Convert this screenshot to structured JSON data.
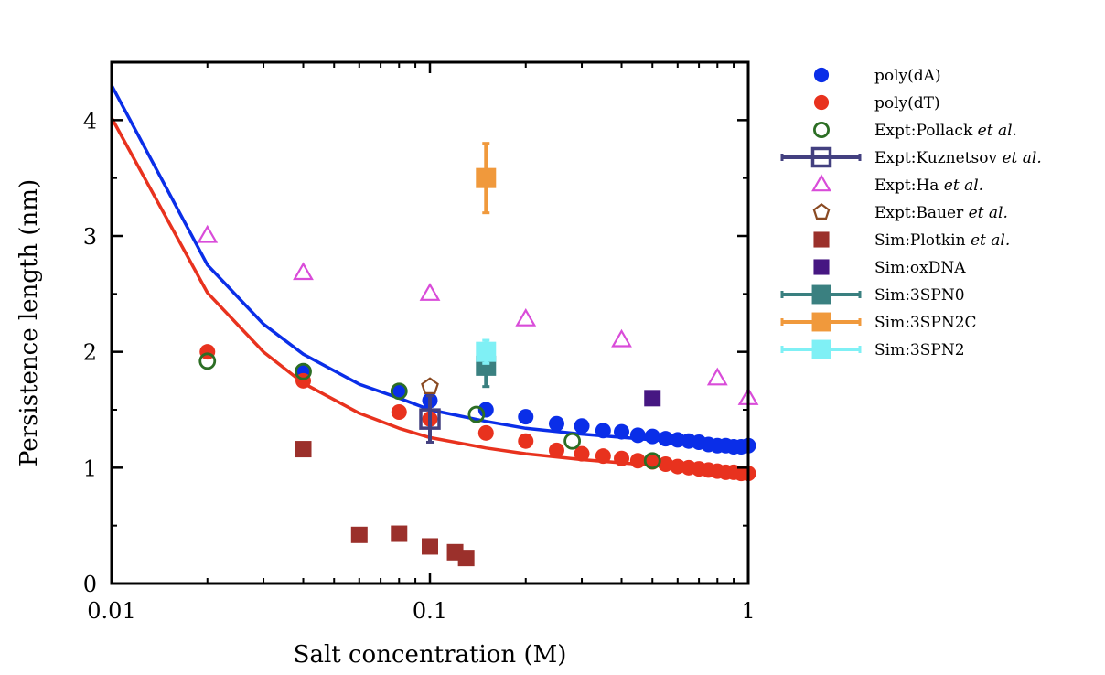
{
  "chart_data": {
    "type": "scatter",
    "xscale": "log",
    "xlabel": "Salt concentration (M)",
    "ylabel": "Persistence length (nm)",
    "xlim": [
      0.01,
      1
    ],
    "ylim": [
      0,
      4.5
    ],
    "xticks": [
      {
        "value": 0.01,
        "label": "0.01"
      },
      {
        "value": 0.1,
        "label": "0.1"
      },
      {
        "value": 1,
        "label": "1"
      }
    ],
    "yticks": [
      {
        "value": 0,
        "label": "0"
      },
      {
        "value": 1,
        "label": "1"
      },
      {
        "value": 2,
        "label": "2"
      },
      {
        "value": 3,
        "label": "3"
      },
      {
        "value": 4,
        "label": "4"
      }
    ],
    "legend_position": "right, outside plot",
    "lines": [
      {
        "name": "poly(dA) fit",
        "color": "#0a2ee8",
        "points": [
          [
            0.01,
            4.3
          ],
          [
            0.02,
            2.75
          ],
          [
            0.03,
            2.24
          ],
          [
            0.04,
            1.98
          ],
          [
            0.06,
            1.72
          ],
          [
            0.08,
            1.6
          ],
          [
            0.1,
            1.5
          ],
          [
            0.15,
            1.4
          ],
          [
            0.2,
            1.34
          ],
          [
            0.3,
            1.29
          ],
          [
            0.5,
            1.24
          ],
          [
            0.7,
            1.22
          ],
          [
            1.0,
            1.2
          ]
        ]
      },
      {
        "name": "poly(dT) fit",
        "color": "#e8321e",
        "points": [
          [
            0.01,
            4.02
          ],
          [
            0.02,
            2.51
          ],
          [
            0.03,
            2.0
          ],
          [
            0.04,
            1.73
          ],
          [
            0.06,
            1.47
          ],
          [
            0.08,
            1.34
          ],
          [
            0.1,
            1.26
          ],
          [
            0.15,
            1.17
          ],
          [
            0.2,
            1.12
          ],
          [
            0.3,
            1.07
          ],
          [
            0.5,
            1.02
          ],
          [
            0.7,
            0.99
          ],
          [
            1.0,
            0.96
          ]
        ]
      }
    ],
    "series": [
      {
        "name": "poly(dA)",
        "marker": "filled-circle",
        "color": "#0a2ee8",
        "points": [
          [
            0.04,
            1.82
          ],
          [
            0.08,
            1.66
          ],
          [
            0.1,
            1.58
          ],
          [
            0.15,
            1.5
          ],
          [
            0.2,
            1.44
          ],
          [
            0.25,
            1.38
          ],
          [
            0.3,
            1.36
          ],
          [
            0.35,
            1.32
          ],
          [
            0.4,
            1.31
          ],
          [
            0.45,
            1.28
          ],
          [
            0.5,
            1.27
          ],
          [
            0.55,
            1.25
          ],
          [
            0.6,
            1.24
          ],
          [
            0.65,
            1.23
          ],
          [
            0.7,
            1.22
          ],
          [
            0.75,
            1.2
          ],
          [
            0.8,
            1.19
          ],
          [
            0.85,
            1.19
          ],
          [
            0.9,
            1.18
          ],
          [
            0.95,
            1.18
          ],
          [
            1.0,
            1.19
          ]
        ]
      },
      {
        "name": "poly(dT)",
        "marker": "filled-circle",
        "color": "#e8321e",
        "points": [
          [
            0.02,
            2.0
          ],
          [
            0.04,
            1.75
          ],
          [
            0.08,
            1.48
          ],
          [
            0.1,
            1.42
          ],
          [
            0.15,
            1.3
          ],
          [
            0.2,
            1.23
          ],
          [
            0.25,
            1.15
          ],
          [
            0.3,
            1.12
          ],
          [
            0.35,
            1.1
          ],
          [
            0.4,
            1.08
          ],
          [
            0.45,
            1.06
          ],
          [
            0.5,
            1.05
          ],
          [
            0.55,
            1.03
          ],
          [
            0.6,
            1.01
          ],
          [
            0.65,
            1.0
          ],
          [
            0.7,
            0.99
          ],
          [
            0.75,
            0.98
          ],
          [
            0.8,
            0.97
          ],
          [
            0.85,
            0.96
          ],
          [
            0.9,
            0.96
          ],
          [
            0.95,
            0.95
          ],
          [
            1.0,
            0.95
          ]
        ]
      },
      {
        "name": "Expt:Pollack",
        "italic": "et al.",
        "marker": "open-circle",
        "color": "#2c6e24",
        "points": [
          [
            0.02,
            1.92
          ],
          [
            0.04,
            1.83
          ],
          [
            0.08,
            1.66
          ],
          [
            0.14,
            1.46
          ],
          [
            0.28,
            1.23
          ],
          [
            0.5,
            1.06
          ]
        ]
      },
      {
        "name": "Expt:Kuznetsov",
        "italic": "et al.",
        "marker": "open-square-errorbar",
        "color": "#434080",
        "points": [
          [
            0.1,
            1.42,
            0.2
          ]
        ]
      },
      {
        "name": "Expt:Ha",
        "italic": "et al.",
        "marker": "open-triangle",
        "color": "#d94cd9",
        "points": [
          [
            0.02,
            3.0
          ],
          [
            0.04,
            2.68
          ],
          [
            0.1,
            2.5
          ],
          [
            0.2,
            2.28
          ],
          [
            0.4,
            2.1
          ],
          [
            0.8,
            1.77
          ],
          [
            1.0,
            1.6
          ]
        ]
      },
      {
        "name": "Expt:Bauer",
        "italic": "et al.",
        "marker": "open-pentagon",
        "color": "#8a4a22",
        "points": [
          [
            0.1,
            1.7
          ]
        ]
      },
      {
        "name": "Sim:Plotkin",
        "italic": "et al.",
        "marker": "filled-square",
        "color": "#9b302b",
        "points": [
          [
            0.04,
            1.16
          ],
          [
            0.06,
            0.42
          ],
          [
            0.08,
            0.43
          ],
          [
            0.1,
            0.32
          ],
          [
            0.12,
            0.27
          ],
          [
            0.13,
            0.22
          ]
        ]
      },
      {
        "name": "Sim:oxDNA",
        "marker": "filled-square",
        "color": "#461782",
        "points": [
          [
            0.5,
            1.6
          ]
        ]
      },
      {
        "name": "Sim:3SPN0",
        "marker": "filled-square-errorbar",
        "color": "#3a8080",
        "points": [
          [
            0.15,
            1.88,
            0.18
          ]
        ]
      },
      {
        "name": "Sim:3SPN2C",
        "marker": "filled-square-errorbar",
        "color": "#f0993c",
        "points": [
          [
            0.15,
            3.5,
            0.3
          ]
        ]
      },
      {
        "name": "Sim:3SPN2",
        "marker": "filled-square-errorbar",
        "color": "#7ff0f5",
        "points": [
          [
            0.15,
            2.0,
            0.1
          ]
        ]
      }
    ]
  }
}
